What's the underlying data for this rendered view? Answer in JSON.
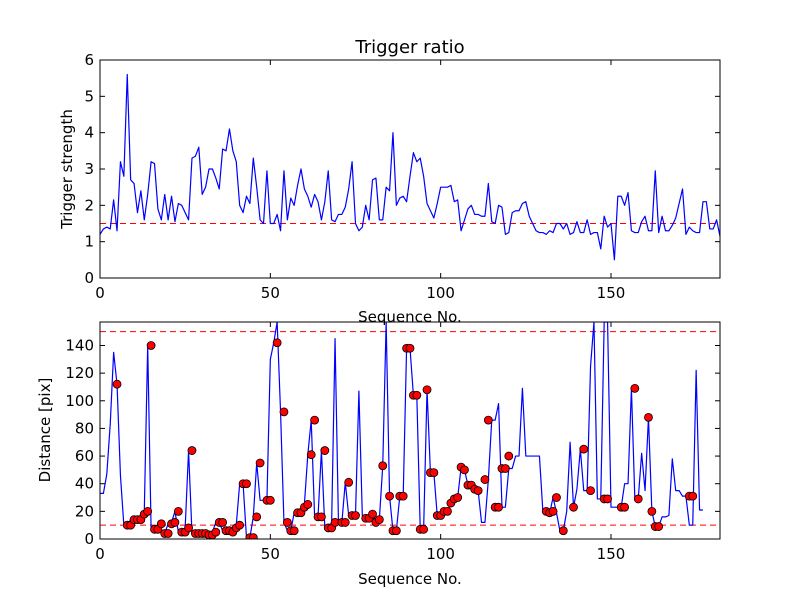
{
  "chart_data": [
    {
      "type": "line",
      "title": "Trigger ratio",
      "xlabel": "Sequence No.",
      "ylabel": "Trigger strength",
      "xlim": [
        0,
        182
      ],
      "ylim": [
        0,
        6
      ],
      "xticks": [
        "0",
        "50",
        "100",
        "150"
      ],
      "yticks": [
        "0",
        "1",
        "2",
        "3",
        "4",
        "5",
        "6"
      ],
      "threshold": 1.5,
      "series": [
        {
          "color": "#0000ff",
          "values": [
            1.2,
            1.35,
            1.4,
            1.35,
            2.15,
            1.3,
            3.2,
            2.8,
            5.6,
            2.7,
            2.6,
            1.8,
            2.4,
            1.6,
            2.3,
            3.2,
            3.15,
            1.9,
            1.6,
            2.3,
            1.6,
            2.25,
            1.55,
            2.05,
            2.0,
            1.8,
            1.6,
            3.3,
            3.35,
            3.6,
            2.3,
            2.5,
            3.0,
            3.0,
            2.75,
            2.45,
            3.55,
            3.5,
            4.1,
            3.5,
            3.2,
            2.0,
            1.8,
            2.25,
            2.05,
            3.3,
            2.5,
            1.6,
            1.5,
            2.95,
            1.5,
            1.5,
            1.75,
            1.3,
            2.95,
            1.6,
            2.2,
            2.0,
            2.55,
            3.0,
            2.45,
            2.25,
            1.95,
            2.3,
            2.1,
            1.6,
            2.1,
            2.95,
            1.6,
            1.55,
            1.75,
            1.75,
            1.95,
            2.45,
            3.2,
            1.5,
            1.3,
            1.4,
            2.0,
            1.6,
            2.7,
            2.75,
            1.6,
            1.6,
            2.5,
            2.4,
            4.0,
            2.0,
            2.2,
            2.25,
            2.1,
            2.8,
            3.45,
            3.2,
            3.3,
            2.8,
            2.05,
            1.85,
            1.65,
            2.05,
            2.5,
            2.5,
            2.5,
            2.55,
            2.1,
            2.15,
            1.3,
            1.6,
            1.9,
            2.0,
            1.75,
            1.75,
            1.7,
            1.7,
            2.6,
            1.55,
            1.5,
            2.0,
            1.95,
            1.2,
            1.25,
            1.8,
            1.85,
            1.85,
            2.05,
            2.1,
            1.7,
            1.5,
            1.3,
            1.25,
            1.25,
            1.2,
            1.3,
            1.25,
            1.5,
            1.5,
            1.35,
            1.5,
            1.2,
            1.25,
            1.55,
            1.25,
            1.25,
            1.6,
            1.2,
            1.25,
            1.25,
            0.8,
            1.7,
            1.4,
            1.5,
            0.5,
            2.25,
            2.25,
            2.0,
            2.35,
            1.3,
            1.25,
            1.25,
            1.55,
            1.7,
            1.3,
            1.3,
            2.95,
            1.25,
            1.7,
            1.3,
            1.3,
            1.45,
            1.65,
            2.05,
            2.45,
            1.2,
            1.4,
            1.3,
            1.25,
            1.25,
            2.1,
            2.1,
            1.35,
            1.35,
            1.6,
            1.15,
            1.35
          ]
        }
      ]
    },
    {
      "type": "line",
      "title": "",
      "xlabel": "Sequence No.",
      "ylabel": "Distance [pix]",
      "xlim": [
        0,
        182
      ],
      "ylim": [
        0,
        157
      ],
      "xticks": [
        "0",
        "50",
        "100",
        "150"
      ],
      "yticks": [
        "0",
        "20",
        "40",
        "60",
        "80",
        "100",
        "120",
        "140"
      ],
      "thresholds": [
        150,
        10
      ],
      "series": [
        {
          "color": "#0000ff",
          "values": [
            33,
            33,
            47,
            83,
            135,
            112,
            46,
            10,
            10,
            14,
            14,
            14,
            18,
            20,
            140,
            7,
            7,
            11,
            4,
            4,
            11,
            12,
            20,
            5,
            5,
            8,
            64,
            4,
            4,
            4,
            4,
            3,
            3,
            5,
            12,
            12,
            6,
            6,
            5,
            8,
            10,
            40,
            40,
            1,
            1,
            16,
            55,
            28,
            28,
            28,
            130,
            142,
            157,
            92,
            12,
            6,
            6,
            19,
            19,
            23,
            25,
            61,
            86,
            16,
            16,
            64,
            8,
            8,
            12,
            145,
            12,
            12,
            41,
            17,
            17,
            17,
            107,
            17,
            15,
            15,
            18,
            12,
            14,
            53,
            157,
            31,
            6,
            6,
            31,
            31,
            138,
            138,
            104,
            104,
            7,
            7,
            108,
            48,
            48,
            17,
            17,
            20,
            20,
            26,
            29,
            30,
            52,
            50,
            39,
            39,
            36,
            35,
            12,
            12,
            43,
            86,
            86,
            98,
            23,
            23,
            51,
            51,
            60,
            60,
            109,
            60,
            60,
            60,
            60,
            60,
            20,
            20,
            19,
            30,
            19,
            6,
            6,
            20,
            70,
            23,
            36,
            65,
            35,
            35,
            125,
            157,
            29,
            29,
            157,
            157,
            23,
            23,
            23,
            23,
            40,
            40,
            109,
            29,
            29,
            62,
            35,
            88,
            20,
            9,
            9,
            16,
            16,
            17,
            58,
            35,
            35,
            31,
            31,
            10,
            10,
            122,
            21,
            21
          ],
          "markers": [
            [
              5,
              112
            ],
            [
              8,
              10
            ],
            [
              9,
              10
            ],
            [
              10,
              14
            ],
            [
              11,
              14
            ],
            [
              12,
              14
            ],
            [
              13,
              18
            ],
            [
              14,
              20
            ],
            [
              15,
              140
            ],
            [
              16,
              7
            ],
            [
              17,
              7
            ],
            [
              18,
              11
            ],
            [
              19,
              4
            ],
            [
              20,
              4
            ],
            [
              21,
              11
            ],
            [
              22,
              12
            ],
            [
              23,
              20
            ],
            [
              24,
              5
            ],
            [
              25,
              5
            ],
            [
              26,
              8
            ],
            [
              27,
              64
            ],
            [
              28,
              4
            ],
            [
              29,
              4
            ],
            [
              30,
              4
            ],
            [
              31,
              4
            ],
            [
              32,
              3
            ],
            [
              33,
              3
            ],
            [
              34,
              5
            ],
            [
              35,
              12
            ],
            [
              36,
              12
            ],
            [
              37,
              6
            ],
            [
              38,
              6
            ],
            [
              39,
              5
            ],
            [
              40,
              8
            ],
            [
              41,
              10
            ],
            [
              42,
              40
            ],
            [
              43,
              40
            ],
            [
              44,
              1
            ],
            [
              45,
              1
            ],
            [
              46,
              16
            ],
            [
              47,
              55
            ],
            [
              49,
              28
            ],
            [
              50,
              28
            ],
            [
              52,
              142
            ],
            [
              54,
              92
            ],
            [
              55,
              12
            ],
            [
              56,
              6
            ],
            [
              57,
              6
            ],
            [
              58,
              19
            ],
            [
              59,
              19
            ],
            [
              60,
              23
            ],
            [
              61,
              25
            ],
            [
              62,
              61
            ],
            [
              63,
              86
            ],
            [
              64,
              16
            ],
            [
              65,
              16
            ],
            [
              66,
              64
            ],
            [
              67,
              8
            ],
            [
              68,
              8
            ],
            [
              69,
              12
            ],
            [
              71,
              12
            ],
            [
              72,
              12
            ],
            [
              73,
              41
            ],
            [
              74,
              17
            ],
            [
              75,
              17
            ],
            [
              78,
              15
            ],
            [
              79,
              15
            ],
            [
              80,
              18
            ],
            [
              81,
              12
            ],
            [
              82,
              14
            ],
            [
              83,
              53
            ],
            [
              85,
              31
            ],
            [
              86,
              6
            ],
            [
              87,
              6
            ],
            [
              88,
              31
            ],
            [
              89,
              31
            ],
            [
              90,
              138
            ],
            [
              91,
              138
            ],
            [
              92,
              104
            ],
            [
              93,
              104
            ],
            [
              94,
              7
            ],
            [
              95,
              7
            ],
            [
              96,
              108
            ],
            [
              97,
              48
            ],
            [
              98,
              48
            ],
            [
              99,
              17
            ],
            [
              100,
              17
            ],
            [
              101,
              20
            ],
            [
              102,
              20
            ],
            [
              103,
              26
            ],
            [
              104,
              29
            ],
            [
              105,
              30
            ],
            [
              106,
              52
            ],
            [
              107,
              50
            ],
            [
              108,
              39
            ],
            [
              109,
              39
            ],
            [
              110,
              36
            ],
            [
              111,
              35
            ],
            [
              113,
              43
            ],
            [
              114,
              86
            ],
            [
              116,
              23
            ],
            [
              117,
              23
            ],
            [
              118,
              51
            ],
            [
              119,
              51
            ],
            [
              120,
              60
            ],
            [
              131,
              20
            ],
            [
              132,
              19
            ],
            [
              133,
              20
            ],
            [
              134,
              30
            ],
            [
              136,
              6
            ],
            [
              139,
              23
            ],
            [
              142,
              65
            ],
            [
              144,
              35
            ],
            [
              148,
              29
            ],
            [
              149,
              29
            ],
            [
              153,
              23
            ],
            [
              154,
              23
            ],
            [
              157,
              109
            ],
            [
              158,
              29
            ],
            [
              161,
              88
            ],
            [
              162,
              20
            ],
            [
              163,
              9
            ],
            [
              164,
              9
            ],
            [
              173,
              31
            ],
            [
              174,
              31
            ]
          ]
        }
      ]
    }
  ]
}
